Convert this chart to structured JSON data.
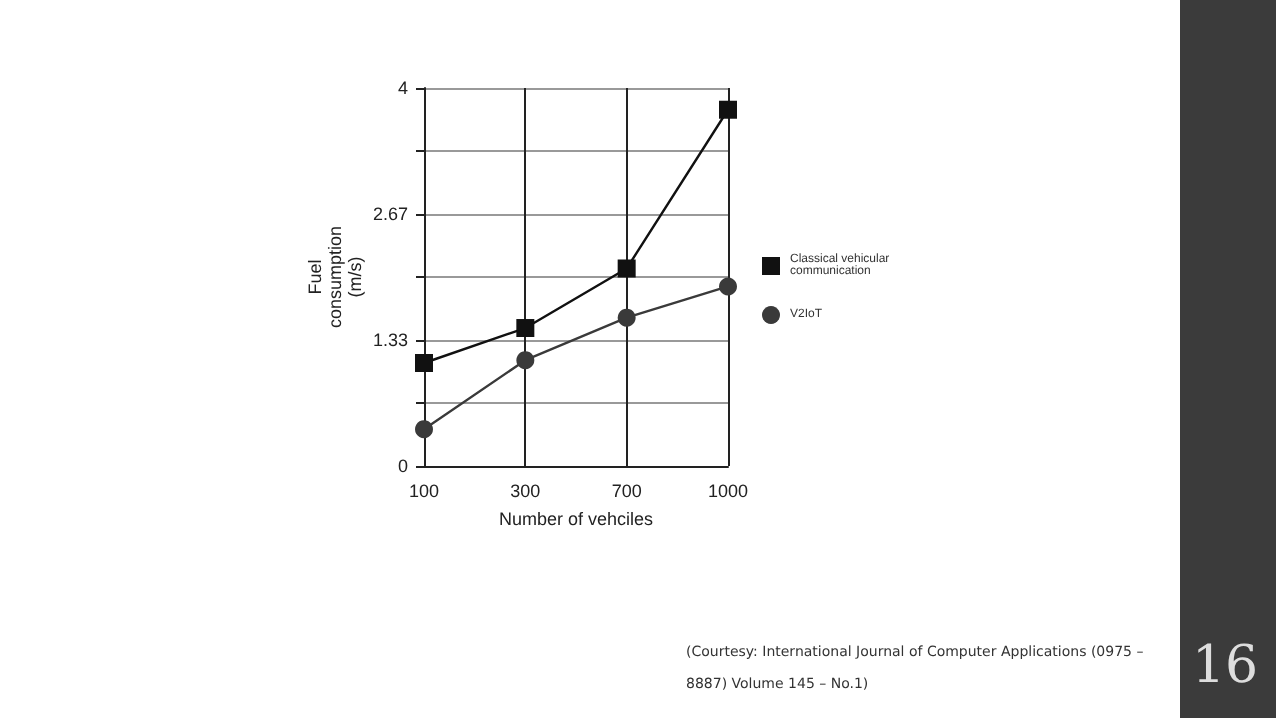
{
  "chart_data": {
    "type": "line",
    "xlabel": "Number of vehciles",
    "ylabel": "Fuel consumption (m/s)",
    "categories": [
      "100",
      "300",
      "700",
      "1000"
    ],
    "series": [
      {
        "name": "Classical vehicular communication",
        "color": "#111111",
        "marker": "square",
        "values": [
          1.09,
          1.46,
          2.09,
          3.77
        ]
      },
      {
        "name": "V2IoT",
        "color": "#3a3a3a",
        "marker": "circle",
        "values": [
          0.39,
          1.12,
          1.57,
          1.9
        ]
      }
    ],
    "ylim": [
      0,
      4
    ],
    "yticks": [
      0,
      {
        "value": 0.67,
        "label": null
      },
      1.33,
      {
        "value": 2,
        "label": null
      },
      2.67,
      {
        "value": 3.33,
        "label": null
      },
      4
    ],
    "grid": true,
    "legend": "right",
    "line_style": "solid",
    "annotations": [
      "(Courtesy: International Journal of Computer Applications (0975 – 8887) Volume 145 – No.1)",
      "16"
    ]
  }
}
